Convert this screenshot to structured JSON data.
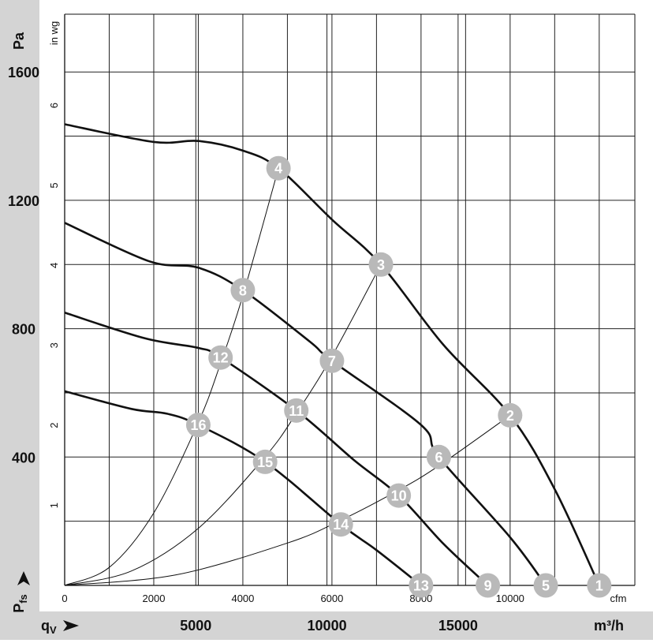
{
  "chart_data": {
    "type": "line",
    "title": "",
    "pa_axis": {
      "unit_label": "Pa",
      "ticks": [
        400,
        800,
        1200,
        1600
      ],
      "range": [
        0,
        1780
      ]
    },
    "inwg_axis": {
      "unit_label": "in wg",
      "ticks": [
        1,
        2,
        3,
        4,
        5,
        6
      ],
      "range": [
        0,
        7.14
      ]
    },
    "cfm_axis": {
      "unit_label": "cfm",
      "ticks": [
        0,
        2000,
        4000,
        6000,
        8000,
        10000
      ],
      "range": [
        0,
        12800
      ]
    },
    "m3h_axis": {
      "unit_label": "m³/h",
      "ticks": [
        5000,
        10000,
        15000
      ],
      "range": [
        0,
        21740
      ]
    },
    "pressure_symbol": "P",
    "pressure_subscript": "fs",
    "flow_symbol": "q",
    "flow_subscript": "V",
    "grid": true,
    "series": [
      {
        "points": [
          [
            0,
            1437
          ],
          [
            2000,
            1382
          ],
          [
            3000,
            1385
          ],
          [
            4000,
            1355
          ],
          [
            4800,
            1300
          ],
          [
            6000,
            1140
          ],
          [
            7100,
            1000
          ],
          [
            8500,
            750
          ],
          [
            10000,
            530
          ],
          [
            11000,
            300
          ],
          [
            12000,
            0
          ]
        ],
        "markers": [
          {
            "label": "4",
            "x": 4800,
            "y": 1300
          },
          {
            "label": "3",
            "x": 7100,
            "y": 1000
          },
          {
            "label": "2",
            "x": 10000,
            "y": 530
          },
          {
            "label": "1",
            "x": 12000,
            "y": 0
          }
        ]
      },
      {
        "points": [
          [
            0,
            1130
          ],
          [
            1900,
            1010
          ],
          [
            3000,
            990
          ],
          [
            4000,
            920
          ],
          [
            5500,
            760
          ],
          [
            6000,
            700
          ],
          [
            8000,
            500
          ],
          [
            8400,
            400
          ],
          [
            10000,
            150
          ],
          [
            10800,
            0
          ]
        ],
        "markers": [
          {
            "label": "8",
            "x": 4000,
            "y": 920
          },
          {
            "label": "7",
            "x": 6000,
            "y": 700
          },
          {
            "label": "6",
            "x": 8400,
            "y": 400
          },
          {
            "label": "5",
            "x": 10800,
            "y": 0
          }
        ]
      },
      {
        "points": [
          [
            0,
            850
          ],
          [
            1800,
            770
          ],
          [
            3000,
            740
          ],
          [
            3500,
            710
          ],
          [
            5200,
            545
          ],
          [
            6500,
            390
          ],
          [
            7500,
            280
          ],
          [
            8500,
            130
          ],
          [
            9500,
            0
          ]
        ],
        "markers": [
          {
            "label": "12",
            "x": 3500,
            "y": 710
          },
          {
            "label": "11",
            "x": 5200,
            "y": 545
          },
          {
            "label": "10",
            "x": 7500,
            "y": 280
          },
          {
            "label": "9",
            "x": 9500,
            "y": 0
          }
        ]
      },
      {
        "points": [
          [
            0,
            605
          ],
          [
            1500,
            550
          ],
          [
            2300,
            535
          ],
          [
            3000,
            500
          ],
          [
            4500,
            385
          ],
          [
            6200,
            190
          ],
          [
            7000,
            110
          ],
          [
            8000,
            0
          ]
        ],
        "markers": [
          {
            "label": "16",
            "x": 3000,
            "y": 500
          },
          {
            "label": "15",
            "x": 4500,
            "y": 385
          },
          {
            "label": "14",
            "x": 6200,
            "y": 190
          },
          {
            "label": "13",
            "x": 8000,
            "y": 0
          }
        ]
      }
    ],
    "system_curves": [
      [
        [
          0,
          0
        ],
        [
          1000,
          56
        ],
        [
          2000,
          226
        ],
        [
          3000,
          508
        ],
        [
          3500,
          692
        ],
        [
          4000,
          903
        ],
        [
          4800,
          1300
        ]
      ],
      [
        [
          0,
          0
        ],
        [
          1500,
          45
        ],
        [
          3000,
          178
        ],
        [
          4500,
          401
        ],
        [
          5200,
          536
        ],
        [
          6000,
          714
        ],
        [
          7100,
          1000
        ]
      ],
      [
        [
          0,
          0
        ],
        [
          2500,
          33
        ],
        [
          5000,
          132
        ],
        [
          6200,
          203
        ],
        [
          7500,
          297
        ],
        [
          8400,
          373
        ],
        [
          10000,
          530
        ]
      ]
    ]
  }
}
